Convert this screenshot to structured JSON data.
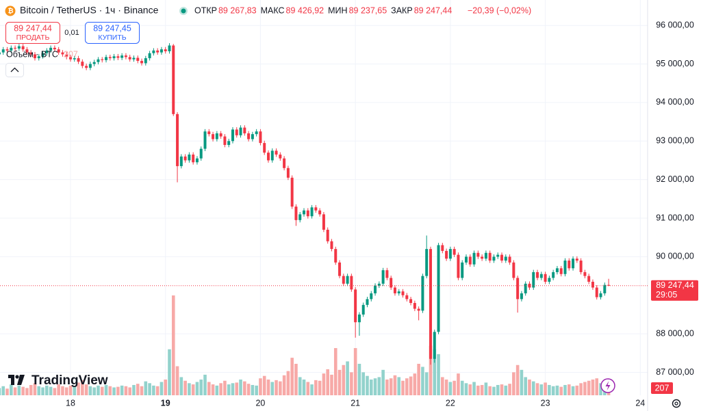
{
  "chart_data": {
    "type": "candlestick",
    "symbol": "Bitcoin / TetherUS · 1ч · Binance",
    "ohlc_legend": [
      {
        "label": "ОТКР",
        "value": "89 267,83"
      },
      {
        "label": "МАКС",
        "value": "89 426,92"
      },
      {
        "label": "МИН",
        "value": "89 237,65"
      },
      {
        "label": "ЗАКР",
        "value": "89 247,44"
      }
    ],
    "change": "−20,39 (−0,02%)",
    "sell": {
      "price": "89 247,44",
      "label": "ПРОДАТЬ"
    },
    "spread": "0,01",
    "buy": {
      "price": "89 247,45",
      "label": "КУПИТЬ"
    },
    "volume_title": "Объём · BTC",
    "brand": "TradingView",
    "last_price": {
      "value": 89247.44,
      "label": "89 247,44"
    },
    "countdown": "29:05",
    "up_color": "#089981",
    "down_color": "#f23645",
    "up_volume_color": "#92d2cc",
    "down_volume_color": "#f7a9a7",
    "grid": true,
    "ylim": [
      86370,
      96660
    ],
    "yticks": [
      {
        "value": 87000,
        "label": "87 000,00"
      },
      {
        "value": 88000,
        "label": "88 000,00"
      },
      {
        "value": 90000,
        "label": "90 000,00"
      },
      {
        "value": 91000,
        "label": "91 000,00"
      },
      {
        "value": 92000,
        "label": "92 000,00"
      },
      {
        "value": 93000,
        "label": "93 000,00"
      },
      {
        "value": 94000,
        "label": "94 000,00"
      },
      {
        "value": 95000,
        "label": "95 000,00"
      },
      {
        "value": 96000,
        "label": "96 000,00"
      }
    ],
    "categories": [
      null,
      null,
      null,
      null,
      null,
      null,
      null,
      null,
      null,
      null,
      null,
      null,
      null,
      null,
      null,
      null,
      null,
      null,
      "18",
      null,
      null,
      null,
      null,
      null,
      null,
      null,
      null,
      null,
      null,
      null,
      null,
      null,
      null,
      null,
      null,
      null,
      null,
      null,
      null,
      null,
      null,
      null,
      "19",
      null,
      null,
      null,
      null,
      null,
      null,
      null,
      null,
      null,
      null,
      null,
      null,
      null,
      null,
      null,
      null,
      null,
      null,
      null,
      null,
      null,
      null,
      null,
      "20",
      null,
      null,
      null,
      null,
      null,
      null,
      null,
      null,
      null,
      null,
      null,
      null,
      null,
      null,
      null,
      null,
      null,
      null,
      null,
      null,
      null,
      null,
      null,
      "21",
      null,
      null,
      null,
      null,
      null,
      null,
      null,
      null,
      null,
      null,
      null,
      null,
      null,
      null,
      null,
      null,
      null,
      null,
      null,
      null,
      null,
      null,
      null,
      "22",
      null,
      null,
      null,
      null,
      null,
      null,
      null,
      null,
      null,
      null,
      null,
      null,
      null,
      null,
      null,
      null,
      null,
      null,
      null,
      null,
      null,
      null,
      null,
      "23",
      null,
      null,
      null,
      null,
      null,
      null,
      null,
      null,
      null,
      null,
      null,
      null,
      null,
      null,
      null,
      null,
      null,
      null,
      null,
      null,
      null,
      null,
      null,
      "24"
    ],
    "open": [
      95250,
      95300,
      95380,
      95350,
      95420,
      95400,
      95460,
      95380,
      95300,
      95250,
      95150,
      95200,
      95280,
      95350,
      95420,
      95380,
      95300,
      95250,
      95180,
      95120,
      95150,
      95060,
      94950,
      94900,
      95000,
      95050,
      95120,
      95100,
      95180,
      95150,
      95200,
      95160,
      95220,
      95180,
      95120,
      95160,
      95080,
      95020,
      95150,
      95280,
      95350,
      95300,
      95380,
      95330,
      95480,
      93700,
      92350,
      92600,
      92500,
      92650,
      92450,
      92550,
      92800,
      93250,
      93180,
      93050,
      93200,
      93120,
      92900,
      93000,
      93300,
      93150,
      93350,
      93200,
      93050,
      93180,
      93250,
      92950,
      92700,
      92500,
      92750,
      92650,
      92550,
      92300,
      92050,
      91300,
      90950,
      91100,
      91200,
      91050,
      91280,
      91200,
      91100,
      90700,
      90400,
      90200,
      89850,
      89500,
      89300,
      89500,
      89150,
      88300,
      88500,
      88750,
      88900,
      89050,
      89250,
      89300,
      89650,
      89450,
      89200,
      89050,
      89100,
      89000,
      88900,
      88800,
      88650,
      88600,
      89500,
      90200,
      87350,
      88050,
      90300,
      90150,
      89950,
      90200,
      90050,
      89450,
      89850,
      90000,
      89800,
      90100,
      90000,
      89950,
      90100,
      89900,
      90000,
      90050,
      89900,
      90000,
      89850,
      89450,
      88900,
      89050,
      89300,
      89200,
      89600,
      89450,
      89550,
      89350,
      89450,
      89600,
      89700,
      89550,
      89900,
      89700,
      89950,
      89900,
      89600,
      89500,
      89350,
      89200,
      88950,
      89050,
      89267.83,
      null,
      null,
      null,
      null,
      null,
      null,
      null,
      null
    ],
    "high": [
      95360,
      95440,
      95440,
      95480,
      95480,
      95520,
      95520,
      95440,
      95360,
      95310,
      95260,
      95340,
      95410,
      95480,
      95480,
      95440,
      95360,
      95310,
      95240,
      95210,
      95210,
      95120,
      95010,
      95060,
      95110,
      95180,
      95180,
      95240,
      95240,
      95260,
      95260,
      95280,
      95280,
      95240,
      95220,
      95220,
      95140,
      95210,
      95340,
      95410,
      95410,
      95440,
      95440,
      95540,
      95520,
      93750,
      92660,
      92660,
      92710,
      92710,
      92610,
      92860,
      93310,
      93310,
      93240,
      93260,
      93260,
      93180,
      93060,
      93360,
      93360,
      93410,
      93410,
      93260,
      93240,
      93310,
      93310,
      93010,
      92760,
      92810,
      92810,
      92710,
      92610,
      92360,
      92110,
      91360,
      91160,
      91260,
      91260,
      91340,
      91340,
      91260,
      91160,
      90760,
      90460,
      90260,
      89910,
      89560,
      89560,
      89560,
      89210,
      88560,
      88810,
      88960,
      89110,
      89310,
      89360,
      89710,
      89710,
      89510,
      89260,
      89160,
      89160,
      89060,
      88960,
      88860,
      88710,
      89560,
      90550,
      90260,
      88110,
      90360,
      90360,
      90210,
      90260,
      90260,
      90110,
      89910,
      90060,
      90060,
      90160,
      90160,
      90060,
      90160,
      90160,
      90060,
      90110,
      90110,
      90060,
      90060,
      89910,
      89510,
      89110,
      89360,
      89360,
      89660,
      89660,
      89610,
      89610,
      89510,
      89660,
      89760,
      89760,
      89960,
      89960,
      90010,
      90010,
      89960,
      89660,
      89560,
      89410,
      89260,
      89110,
      89330,
      89426.92,
      null,
      null,
      null,
      null,
      null,
      null,
      null,
      null
    ],
    "low": [
      95190,
      95240,
      95290,
      95290,
      95340,
      95340,
      95320,
      95240,
      95190,
      95090,
      95090,
      95140,
      95220,
      95290,
      95320,
      95240,
      95190,
      95120,
      95060,
      95060,
      95000,
      94890,
      94840,
      94840,
      94940,
      94990,
      95040,
      95040,
      95090,
      95090,
      95100,
      95100,
      95120,
      95060,
      95060,
      95020,
      94960,
      94960,
      95090,
      95220,
      95240,
      95240,
      95270,
      95270,
      93650,
      91930,
      92290,
      92440,
      92440,
      92390,
      92390,
      92490,
      92740,
      93120,
      92990,
      92990,
      93060,
      92840,
      92840,
      92940,
      93090,
      93090,
      93140,
      92990,
      92990,
      93120,
      92890,
      92640,
      92440,
      92440,
      92590,
      92490,
      92240,
      91990,
      91240,
      90800,
      90890,
      91040,
      90990,
      90990,
      91140,
      91040,
      90640,
      90340,
      90140,
      89790,
      89440,
      89240,
      89240,
      89090,
      87900,
      87950,
      88440,
      88690,
      88840,
      88990,
      89190,
      89240,
      89390,
      89140,
      88990,
      88990,
      88940,
      88840,
      88740,
      88590,
      88350,
      88540,
      89440,
      87200,
      87250,
      87990,
      90090,
      89890,
      89890,
      89990,
      89390,
      89390,
      89790,
      89740,
      89740,
      89940,
      89890,
      89890,
      89840,
      89840,
      89940,
      89840,
      89840,
      89790,
      89390,
      88550,
      88840,
      88990,
      89140,
      89140,
      89390,
      89390,
      89290,
      89290,
      89390,
      89540,
      89490,
      89490,
      89640,
      89640,
      89840,
      89540,
      89440,
      89290,
      89140,
      88890,
      88890,
      88990,
      89237.65,
      null,
      null,
      null,
      null,
      null,
      null,
      null,
      null
    ],
    "close": [
      95300,
      95380,
      95350,
      95420,
      95400,
      95460,
      95380,
      95300,
      95250,
      95150,
      95200,
      95280,
      95350,
      95420,
      95380,
      95300,
      95250,
      95180,
      95120,
      95150,
      95060,
      94950,
      94900,
      95000,
      95050,
      95120,
      95100,
      95180,
      95150,
      95200,
      95160,
      95220,
      95180,
      95120,
      95160,
      95080,
      95020,
      95150,
      95280,
      95350,
      95300,
      95380,
      95330,
      95480,
      93700,
      92350,
      92600,
      92500,
      92650,
      92450,
      92550,
      92800,
      93250,
      93180,
      93050,
      93200,
      93120,
      92900,
      93000,
      93300,
      93150,
      93350,
      93200,
      93050,
      93180,
      93250,
      92950,
      92700,
      92500,
      92750,
      92650,
      92550,
      92300,
      92050,
      91300,
      90950,
      91100,
      91200,
      91050,
      91280,
      91200,
      91100,
      90700,
      90400,
      90200,
      89850,
      89500,
      89300,
      89500,
      89150,
      88300,
      88500,
      88750,
      88900,
      89050,
      89250,
      89300,
      89650,
      89450,
      89200,
      89050,
      89100,
      89000,
      88900,
      88800,
      88650,
      88600,
      89500,
      90200,
      87350,
      88050,
      90300,
      90150,
      89950,
      90200,
      90050,
      89450,
      89850,
      90000,
      89800,
      90100,
      90000,
      89950,
      90100,
      89900,
      90000,
      90050,
      89900,
      90000,
      89850,
      89450,
      88900,
      89050,
      89300,
      89200,
      89600,
      89450,
      89550,
      89350,
      89450,
      89600,
      89700,
      89550,
      89900,
      89700,
      89950,
      89900,
      89600,
      89500,
      89350,
      89200,
      88950,
      89050,
      89267.83,
      89247.44,
      null,
      null,
      null,
      null,
      null,
      null,
      null,
      null
    ],
    "volume": [
      120,
      150,
      110,
      180,
      130,
      160,
      140,
      120,
      170,
      200,
      150,
      130,
      160,
      140,
      120,
      180,
      150,
      130,
      160,
      140,
      210,
      250,
      180,
      150,
      130,
      160,
      140,
      170,
      150,
      130,
      140,
      160,
      150,
      130,
      170,
      190,
      150,
      230,
      200,
      160,
      150,
      220,
      260,
      760,
      1650,
      480,
      300,
      240,
      200,
      180,
      220,
      260,
      340,
      220,
      180,
      160,
      200,
      240,
      180,
      200,
      210,
      260,
      230,
      190,
      170,
      160,
      280,
      320,
      260,
      220,
      250,
      230,
      330,
      400,
      620,
      520,
      300,
      260,
      220,
      180,
      250,
      240,
      360,
      430,
      340,
      780,
      420,
      500,
      560,
      380,
      780,
      520,
      380,
      320,
      260,
      280,
      300,
      420,
      260,
      280,
      330,
      300,
      240,
      280,
      310,
      360,
      520,
      470,
      380,
      820,
      760,
      680,
      300,
      260,
      220,
      240,
      360,
      240,
      200,
      180,
      220,
      160,
      170,
      210,
      150,
      140,
      170,
      180,
      160,
      190,
      380,
      500,
      420,
      300,
      260,
      230,
      200,
      180,
      210,
      170,
      150,
      160,
      140,
      170,
      180,
      150,
      160,
      200,
      220,
      240,
      260,
      280,
      200,
      180,
      207,
      null,
      null,
      null,
      null,
      null,
      null,
      null,
      null
    ]
  }
}
